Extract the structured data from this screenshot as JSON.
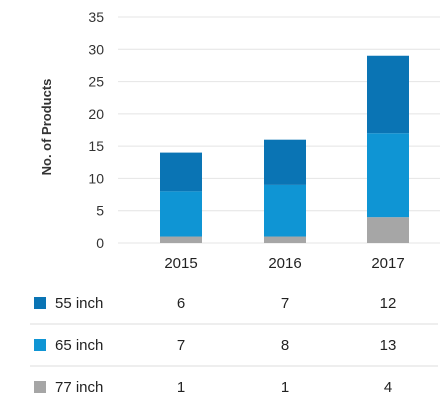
{
  "chart_data": {
    "type": "bar",
    "stacked": true,
    "categories": [
      "2015",
      "2016",
      "2017"
    ],
    "ylabel": "No. of Products",
    "ylim": [
      0,
      35
    ],
    "yticks": [
      0,
      5,
      10,
      15,
      20,
      25,
      30,
      35
    ],
    "grid": true,
    "series": [
      {
        "name": "77 inch",
        "values": [
          1,
          1,
          4
        ],
        "color": "#a6a6a6"
      },
      {
        "name": "65 inch",
        "values": [
          7,
          8,
          13
        ],
        "color": "#0f95d4"
      },
      {
        "name": "55 inch",
        "values": [
          6,
          7,
          12
        ],
        "color": "#0a74b4"
      }
    ],
    "table_order": [
      "55 inch",
      "65 inch",
      "77 inch"
    ]
  }
}
